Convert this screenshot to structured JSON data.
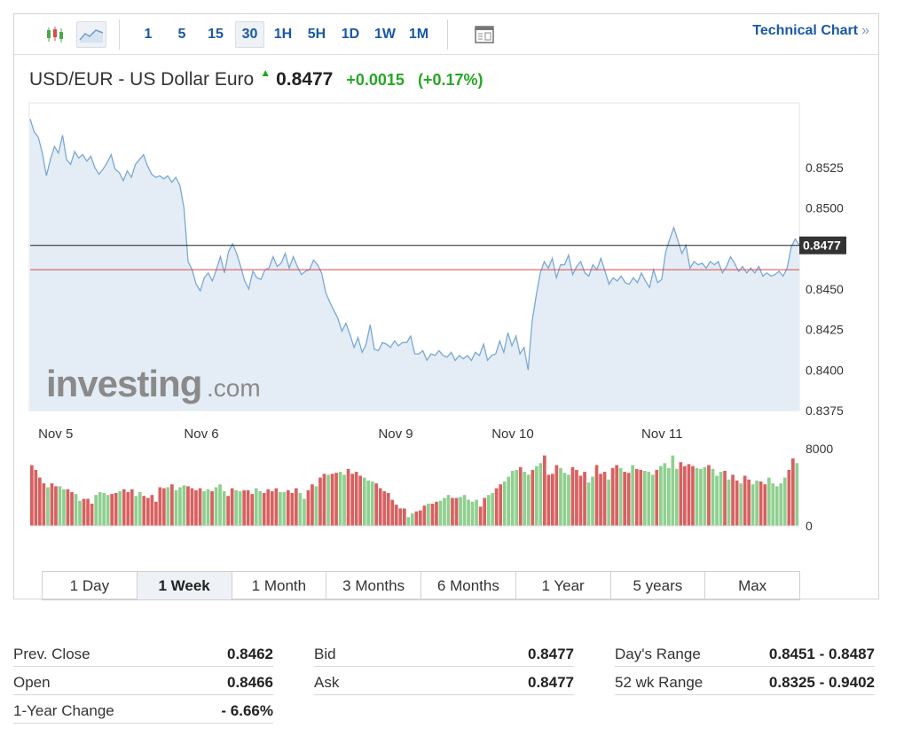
{
  "toolbar": {
    "chart_type_icons": [
      "candlestick-icon",
      "area-chart-icon"
    ],
    "intervals": [
      "1",
      "5",
      "15",
      "30",
      "1H",
      "5H",
      "1D",
      "1W",
      "1M"
    ],
    "active_interval": "30",
    "layout_icon": "layout-icon",
    "technical_chart_label": "Technical Chart",
    "technical_chart_arrow": "»"
  },
  "header": {
    "pair_name": "USD/EUR - US Dollar Euro",
    "price": "0.8477",
    "change": "+0.0015",
    "change_pct": "(+0.17%)",
    "direction": "up"
  },
  "watermark": {
    "brand": "investing",
    "suffix": ".com"
  },
  "colors": {
    "line": "#7aa7d6",
    "area": "#e4edf5",
    "current_price_line": "#222222",
    "prev_close_line": "#d94a4a",
    "volume_up": "#8fcf8f",
    "volume_down": "#d96060",
    "link": "#1a58a6",
    "positive": "#27a727"
  },
  "chart_data": {
    "type": "area",
    "title": "USD/EUR - US Dollar Euro",
    "x_tick_labels": [
      "Nov 5",
      "Nov 6",
      "Nov 9",
      "Nov 10",
      "Nov 11"
    ],
    "y_tick_labels": [
      "0.8525",
      "0.8500",
      "0.8450",
      "0.8425",
      "0.8400",
      "0.8375"
    ],
    "ylim": [
      0.8375,
      0.8565
    ],
    "current_price_label": "0.8477",
    "current_price": 0.8477,
    "prev_close": 0.8462,
    "price_series": [
      0.8555,
      0.8547,
      0.8544,
      0.8534,
      0.852,
      0.853,
      0.8538,
      0.8534,
      0.8545,
      0.853,
      0.8527,
      0.8535,
      0.8531,
      0.8533,
      0.8529,
      0.8532,
      0.8525,
      0.8521,
      0.8524,
      0.8528,
      0.8533,
      0.8524,
      0.8522,
      0.8517,
      0.8523,
      0.8519,
      0.8527,
      0.853,
      0.8533,
      0.8526,
      0.8521,
      0.8519,
      0.852,
      0.8518,
      0.852,
      0.8516,
      0.8519,
      0.8514,
      0.85,
      0.8467,
      0.8462,
      0.8453,
      0.8449,
      0.8457,
      0.846,
      0.8455,
      0.8462,
      0.847,
      0.846,
      0.8473,
      0.8478,
      0.8472,
      0.8464,
      0.8455,
      0.845,
      0.8461,
      0.8457,
      0.8456,
      0.8462,
      0.8463,
      0.847,
      0.8464,
      0.8466,
      0.8472,
      0.8463,
      0.847,
      0.8464,
      0.8459,
      0.8461,
      0.8462,
      0.8468,
      0.8465,
      0.846,
      0.8448,
      0.8442,
      0.8437,
      0.8432,
      0.8424,
      0.8429,
      0.8422,
      0.8414,
      0.842,
      0.8411,
      0.8416,
      0.8428,
      0.8413,
      0.8412,
      0.8417,
      0.8416,
      0.8414,
      0.8418,
      0.8415,
      0.8417,
      0.8417,
      0.8421,
      0.841,
      0.841,
      0.8412,
      0.8406,
      0.841,
      0.8409,
      0.8412,
      0.8409,
      0.8408,
      0.8411,
      0.8406,
      0.8409,
      0.8407,
      0.8409,
      0.8406,
      0.8411,
      0.8409,
      0.8416,
      0.8406,
      0.8409,
      0.841,
      0.8418,
      0.8411,
      0.8423,
      0.8415,
      0.8421,
      0.841,
      0.8414,
      0.84,
      0.843,
      0.8446,
      0.846,
      0.8467,
      0.8463,
      0.8469,
      0.8457,
      0.8465,
      0.8465,
      0.8471,
      0.8459,
      0.8464,
      0.8467,
      0.846,
      0.8458,
      0.8465,
      0.8462,
      0.8469,
      0.8461,
      0.8453,
      0.8457,
      0.8455,
      0.8458,
      0.8454,
      0.8453,
      0.8457,
      0.8454,
      0.846,
      0.8455,
      0.8451,
      0.8462,
      0.8454,
      0.8456,
      0.8473,
      0.8481,
      0.8488,
      0.848,
      0.8472,
      0.8477,
      0.8463,
      0.8467,
      0.8465,
      0.8466,
      0.8463,
      0.8467,
      0.8465,
      0.8467,
      0.846,
      0.8464,
      0.847,
      0.8466,
      0.8461,
      0.8464,
      0.846,
      0.8463,
      0.846,
      0.8464,
      0.8458,
      0.846,
      0.8458,
      0.8459,
      0.8461,
      0.8458,
      0.8463,
      0.8476,
      0.8481,
      0.8477
    ],
    "volume_ylim": [
      0,
      8000
    ],
    "volume_tick_labels": [
      "8000",
      "0"
    ],
    "volume_series": [
      6300,
      5800,
      5000,
      4400,
      4000,
      4400,
      4100,
      4100,
      3800,
      3800,
      3500,
      3300,
      2600,
      2800,
      2800,
      2300,
      3200,
      3500,
      3400,
      3200,
      3300,
      3400,
      3600,
      3800,
      3500,
      3800,
      3100,
      3500,
      3100,
      2900,
      3200,
      2500,
      4000,
      3900,
      4000,
      4300,
      3700,
      4000,
      4200,
      4100,
      3900,
      3700,
      3900,
      3600,
      3800,
      3600,
      4000,
      4300,
      3600,
      3100,
      3900,
      3700,
      3600,
      3700,
      3700,
      3300,
      3900,
      3600,
      3400,
      3800,
      3600,
      3900,
      3500,
      3500,
      3700,
      3400,
      3900,
      3400,
      2800,
      3700,
      4300,
      4100,
      5000,
      5400,
      5300,
      5400,
      5500,
      5600,
      5300,
      5900,
      5400,
      5600,
      5200,
      5000,
      4700,
      4600,
      4400,
      3900,
      3600,
      3400,
      2700,
      2200,
      1800,
      1800,
      900,
      1300,
      1500,
      1600,
      2100,
      2300,
      2300,
      2500,
      2600,
      2900,
      3200,
      2900,
      2900,
      3000,
      3200,
      2700,
      2500,
      2700,
      2000,
      2900,
      3200,
      3400,
      3900,
      4300,
      4600,
      5100,
      5700,
      5800,
      6100,
      5600,
      5300,
      5800,
      6200,
      6500,
      7300,
      5300,
      5400,
      6300,
      6000,
      5500,
      5300,
      6100,
      5800,
      5200,
      5600,
      4500,
      5100,
      6300,
      5400,
      5600,
      4800,
      6000,
      6300,
      6000,
      5600,
      5500,
      6300,
      5900,
      5800,
      5700,
      5600,
      5300,
      5800,
      6200,
      6500,
      6000,
      7300,
      5900,
      6600,
      6200,
      6400,
      6200,
      6000,
      5900,
      6100,
      6300,
      5900,
      5200,
      5600,
      5700,
      4800,
      5300,
      4700,
      4400,
      5200,
      4800,
      4300,
      4700,
      4600,
      4300,
      5000,
      4400,
      4100,
      4400,
      5000,
      5800,
      7000,
      6500
    ],
    "volume_directions": "ddddudduudduuddduuuudduddduudddddduduuudddduuduuudduuddduudddduuddduudduddudduudddduuudddddddduudddudduuudduuuuudduudduuuuduuduudddduuudddduudddudduddudduuuduuuuudddduuuduuududdudduudduuuuudduuuudd",
    "volume_peak_marker": true
  },
  "ranges": {
    "items": [
      "1 Day",
      "1 Week",
      "1 Month",
      "3 Months",
      "6 Months",
      "1 Year",
      "5 years",
      "Max"
    ],
    "active": "1 Week"
  },
  "stats": {
    "col1": [
      {
        "label": "Prev. Close",
        "value": "0.8462"
      },
      {
        "label": "Open",
        "value": "0.8466"
      },
      {
        "label": "1-Year Change",
        "value": "- 6.66%"
      }
    ],
    "col2": [
      {
        "label": "Bid",
        "value": "0.8477"
      },
      {
        "label": "Ask",
        "value": "0.8477"
      }
    ],
    "col3": [
      {
        "label": "Day's Range",
        "value": "0.8451 - 0.8487"
      },
      {
        "label": "52 wk Range",
        "value": "0.8325 - 0.9402"
      }
    ]
  }
}
